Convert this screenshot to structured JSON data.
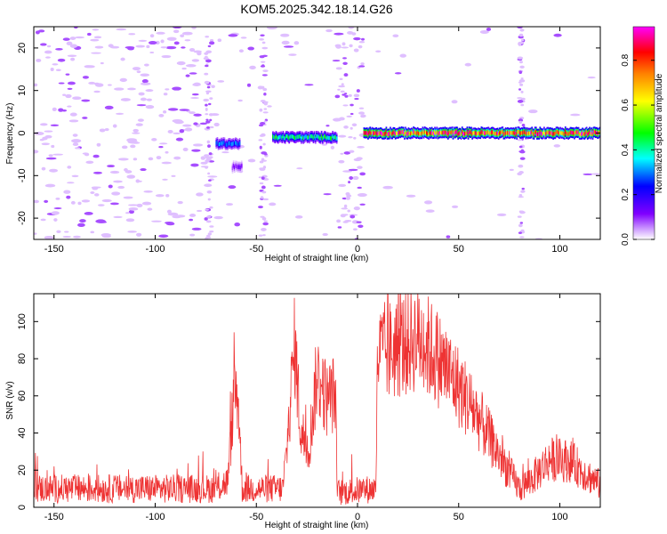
{
  "chart_data": [
    {
      "type": "heatmap",
      "title": "KOM5.2025.342.18.14.G26",
      "xlabel": "Height of straight line (km)",
      "ylabel": "Frequency (Hz)",
      "xlim": [
        -160,
        120
      ],
      "ylim": [
        -25,
        25
      ],
      "x_ticks": [
        -150,
        -100,
        -50,
        0,
        50,
        100
      ],
      "y_ticks": [
        -20,
        -10,
        0,
        10,
        20
      ],
      "colorbar": {
        "label": "Normalized spectral amplitude",
        "range": [
          0,
          0.95
        ],
        "ticks": [
          0.0,
          0.2,
          0.4,
          0.6,
          0.8
        ],
        "colors": [
          "#ffffff",
          "#cc99ff",
          "#8000ff",
          "#0000ff",
          "#00ffff",
          "#00ff00",
          "#ffff00",
          "#ff8000",
          "#ff0000",
          "#ff00ff"
        ]
      },
      "bands": [
        {
          "x_start": -70,
          "x_end": -58,
          "freq": -2.5,
          "amplitude": 0.3
        },
        {
          "x_start": -62,
          "x_end": -57,
          "freq": -8.0,
          "amplitude": 0.12
        },
        {
          "x_start": -42,
          "x_end": -10,
          "freq": -1.0,
          "amplitude": 0.45
        },
        {
          "x_start": 3,
          "x_end": 120,
          "freq": 0.0,
          "amplitude": 0.85
        }
      ],
      "grid": false
    },
    {
      "type": "line",
      "title": "",
      "xlabel": "Height of straight line (km)",
      "ylabel": "SNR (v/v)",
      "xlim": [
        -160,
        120
      ],
      "ylim": [
        0,
        115
      ],
      "x_ticks": [
        -150,
        -100,
        -50,
        0,
        50,
        100
      ],
      "y_ticks": [
        0,
        20,
        40,
        60,
        80,
        100
      ],
      "series_color": "#ee3333",
      "profile": [
        {
          "x": -160,
          "y": 10
        },
        {
          "x": -70,
          "y": 10
        },
        {
          "x": -64,
          "y": 14
        },
        {
          "x": -61,
          "y": 62
        },
        {
          "x": -59,
          "y": 60
        },
        {
          "x": -57,
          "y": 10
        },
        {
          "x": -37,
          "y": 10
        },
        {
          "x": -35,
          "y": 30
        },
        {
          "x": -33,
          "y": 60
        },
        {
          "x": -31,
          "y": 88
        },
        {
          "x": -28,
          "y": 40
        },
        {
          "x": -24,
          "y": 32
        },
        {
          "x": -20,
          "y": 72
        },
        {
          "x": -15,
          "y": 58
        },
        {
          "x": -11,
          "y": 62
        },
        {
          "x": -10,
          "y": 8
        },
        {
          "x": 9,
          "y": 10
        },
        {
          "x": 10,
          "y": 82
        },
        {
          "x": 20,
          "y": 86
        },
        {
          "x": 30,
          "y": 92
        },
        {
          "x": 40,
          "y": 80
        },
        {
          "x": 50,
          "y": 65
        },
        {
          "x": 60,
          "y": 48
        },
        {
          "x": 70,
          "y": 28
        },
        {
          "x": 80,
          "y": 10
        },
        {
          "x": 86,
          "y": 15
        },
        {
          "x": 95,
          "y": 26
        },
        {
          "x": 105,
          "y": 25
        },
        {
          "x": 113,
          "y": 18
        },
        {
          "x": 120,
          "y": 12
        }
      ],
      "grid": false
    }
  ]
}
